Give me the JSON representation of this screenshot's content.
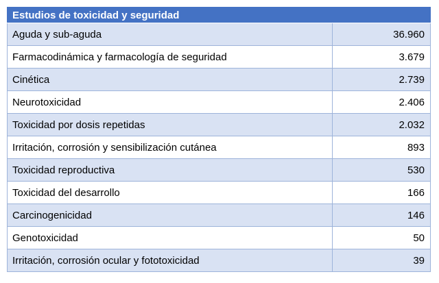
{
  "table": {
    "header": "Estudios de toxicidad  y seguridad",
    "rows": [
      {
        "label": "Aguda y sub-aguda",
        "value": "36.960"
      },
      {
        "label": "Farmacodinámica y farmacología  de seguridad",
        "value": "3.679"
      },
      {
        "label": "Cinética",
        "value": "2.739"
      },
      {
        "label": "Neurotoxicidad",
        "value": "2.406"
      },
      {
        "label": "Toxicidad por dosis repetidas",
        "value": "2.032"
      },
      {
        "label": "Irritación, corrosión y sensibilización  cutánea",
        "value": "893"
      },
      {
        "label": "Toxicidad reproductiva",
        "value": "530"
      },
      {
        "label": "Toxicidad del desarrollo",
        "value": "166"
      },
      {
        "label": "Carcinogenicidad",
        "value": "146"
      },
      {
        "label": "Genotoxicidad",
        "value": "50"
      },
      {
        "label": "Irritación, corrosión ocular y fototoxicidad",
        "value": "39"
      }
    ]
  },
  "colors": {
    "header_bg": "#4472c4",
    "header_text": "#ffffff",
    "band_bg": "#d9e2f3",
    "plain_bg": "#ffffff",
    "border": "#9db3da"
  }
}
